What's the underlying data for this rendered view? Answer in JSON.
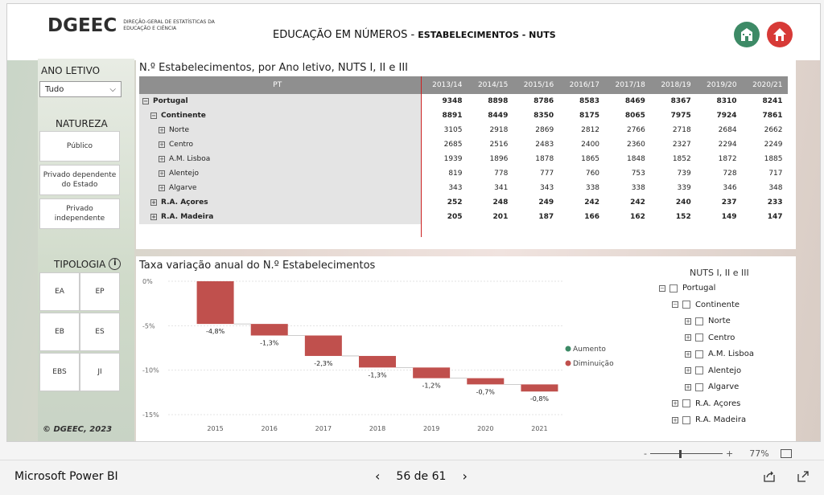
{
  "header": {
    "logo": "DGEEC",
    "logo_subtitle": "DIREÇÃO-GERAL DE ESTATÍSTICAS DA EDUCAÇÃO E CIÊNCIA",
    "title_plain": "EDUCAÇÃO EM NÚMEROS - ",
    "title_bold": "ESTABELECIMENTOS - NUTS"
  },
  "filters": {
    "year_label": "ANO LETIVO",
    "year_value": "Tudo",
    "natureza_label": "NATUREZA",
    "natureza": [
      "Público",
      "Privado dependente do Estado",
      "Privado independente"
    ],
    "tipologia_label": "TIPOLOGIA",
    "tipologia": [
      "EA",
      "EP",
      "EB",
      "ES",
      "EBS",
      "JI"
    ],
    "copyright": "© DGEEC, 2023"
  },
  "table": {
    "title": "N.º Estabelecimentos, por Ano letivo, NUTS I, II e III",
    "header_pt": "PT",
    "years": [
      "2013/14",
      "2014/15",
      "2015/16",
      "2016/17",
      "2017/18",
      "2018/19",
      "2019/20",
      "2020/21"
    ],
    "rows": [
      {
        "name": "Portugal",
        "level": 0,
        "bold": true,
        "sign": "⊟",
        "values": [
          "9348",
          "8898",
          "8786",
          "8583",
          "8469",
          "8367",
          "8310",
          "8241"
        ]
      },
      {
        "name": "Continente",
        "level": 1,
        "bold": true,
        "sign": "⊟",
        "values": [
          "8891",
          "8449",
          "8350",
          "8175",
          "8065",
          "7975",
          "7924",
          "7861"
        ]
      },
      {
        "name": "Norte",
        "level": 2,
        "bold": false,
        "sign": "⊞",
        "values": [
          "3105",
          "2918",
          "2869",
          "2812",
          "2766",
          "2718",
          "2684",
          "2662"
        ]
      },
      {
        "name": "Centro",
        "level": 2,
        "bold": false,
        "sign": "⊞",
        "values": [
          "2685",
          "2516",
          "2483",
          "2400",
          "2360",
          "2327",
          "2294",
          "2249"
        ]
      },
      {
        "name": "A.M. Lisboa",
        "level": 2,
        "bold": false,
        "sign": "⊞",
        "values": [
          "1939",
          "1896",
          "1878",
          "1865",
          "1848",
          "1852",
          "1872",
          "1885"
        ]
      },
      {
        "name": "Alentejo",
        "level": 2,
        "bold": false,
        "sign": "⊞",
        "values": [
          "819",
          "778",
          "777",
          "760",
          "753",
          "739",
          "728",
          "717"
        ]
      },
      {
        "name": "Algarve",
        "level": 2,
        "bold": false,
        "sign": "⊞",
        "values": [
          "343",
          "341",
          "343",
          "338",
          "338",
          "339",
          "346",
          "348"
        ]
      },
      {
        "name": "R.A. Açores",
        "level": 1,
        "bold": true,
        "sign": "⊞",
        "values": [
          "252",
          "248",
          "249",
          "242",
          "242",
          "240",
          "237",
          "233"
        ]
      },
      {
        "name": "R.A. Madeira",
        "level": 1,
        "bold": true,
        "sign": "⊞",
        "values": [
          "205",
          "201",
          "187",
          "166",
          "162",
          "152",
          "149",
          "147"
        ]
      }
    ]
  },
  "chart_data": {
    "type": "bar",
    "title": "Taxa variação anual do N.º Estabelecimentos",
    "categories": [
      "2015",
      "2016",
      "2017",
      "2018",
      "2019",
      "2020",
      "2021"
    ],
    "start": [
      0,
      -4.8,
      -6.1,
      -8.4,
      -9.7,
      -10.9,
      -11.6
    ],
    "values": [
      -4.8,
      -1.3,
      -2.3,
      -1.3,
      -1.2,
      -0.7,
      -0.8
    ],
    "labels": [
      "-4,8%",
      "-1,3%",
      "-2,3%",
      "-1,3%",
      "-1,2%",
      "-0,7%",
      "-0,8%"
    ],
    "ylim": [
      -15,
      0
    ],
    "yticks": [
      "0%",
      "-5%",
      "-10%",
      "-15%"
    ],
    "legend": [
      {
        "name": "Aumento",
        "color": "#3d8a66"
      },
      {
        "name": "Diminuição",
        "color": "#c0504d"
      }
    ],
    "bar_color": "#c0504d"
  },
  "slicer": {
    "title": "NUTS I, II e III",
    "items": [
      {
        "name": "Portugal",
        "level": 0,
        "sign": "⊟"
      },
      {
        "name": "Continente",
        "level": 1,
        "sign": "⊟"
      },
      {
        "name": "Norte",
        "level": 2,
        "sign": "⊞"
      },
      {
        "name": "Centro",
        "level": 2,
        "sign": "⊞"
      },
      {
        "name": "A.M. Lisboa",
        "level": 2,
        "sign": "⊞"
      },
      {
        "name": "Alentejo",
        "level": 2,
        "sign": "⊞"
      },
      {
        "name": "Algarve",
        "level": 2,
        "sign": "⊞"
      },
      {
        "name": "R.A. Açores",
        "level": 1,
        "sign": "⊞"
      },
      {
        "name": "R.A. Madeira",
        "level": 1,
        "sign": "⊞"
      }
    ]
  },
  "viewer": {
    "zoom_minus": "-",
    "zoom_plus": "+",
    "zoom": "77%",
    "app_name": "Microsoft Power BI",
    "page_indicator": "56 de 61"
  }
}
